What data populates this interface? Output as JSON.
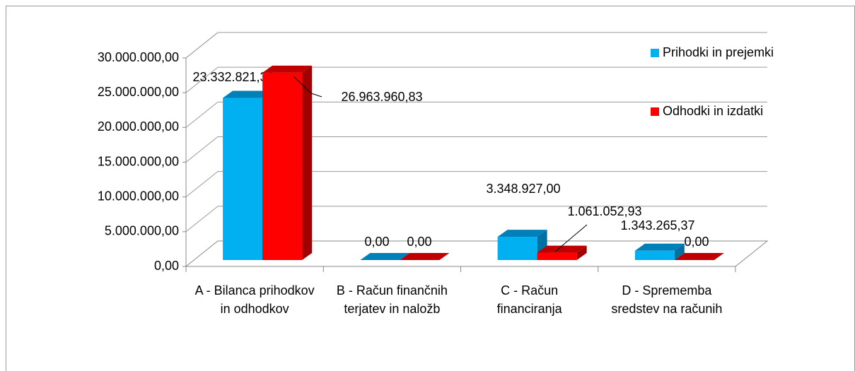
{
  "chart_data": {
    "type": "bar3d",
    "categories": [
      "A - Bilanca prihodkov in odhodkov",
      "B - Račun finančnih terjatev in naložb",
      "C - Račun financiranja",
      "D - Sprememba sredstev na računih"
    ],
    "series": [
      {
        "name": "Prihodki in prejemki",
        "color": "#00b0f0",
        "values": [
          23332821.39,
          0,
          3348927.0,
          1343265.37
        ],
        "value_labels": [
          "23.332.821,39",
          "0,00",
          "3.348.927,00",
          "1.343.265,37"
        ]
      },
      {
        "name": "Odhodki in izdatki",
        "color": "#ff0000",
        "values": [
          26963960.83,
          0,
          1061052.93,
          0
        ],
        "value_labels": [
          "26.963.960,83",
          "0,00",
          "1.061.052,93",
          "0,00"
        ]
      }
    ],
    "ylim": [
      0,
      30000000
    ],
    "yticks": [
      {
        "value": 0,
        "label": "0,00"
      },
      {
        "value": 5000000,
        "label": "5.000.000,00"
      },
      {
        "value": 10000000,
        "label": "10.000.000,00"
      },
      {
        "value": 15000000,
        "label": "15.000.000,00"
      },
      {
        "value": 20000000,
        "label": "20.000.000,00"
      },
      {
        "value": 25000000,
        "label": "25.000.000,00"
      },
      {
        "value": 30000000,
        "label": "30.000.000,00"
      }
    ],
    "grid": true,
    "legend": "right"
  }
}
